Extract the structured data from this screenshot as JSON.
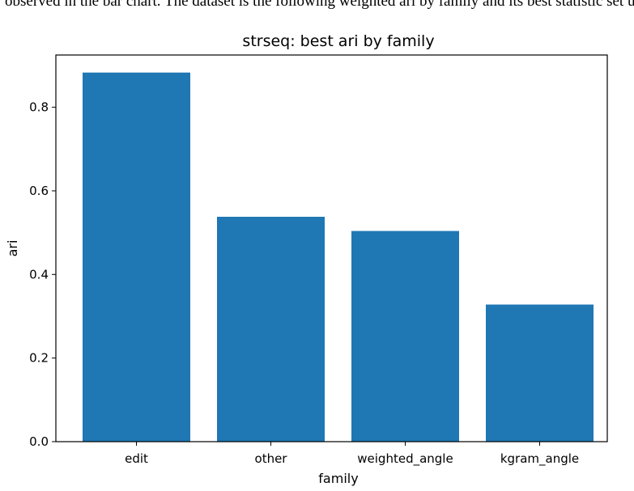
{
  "caption_fragment": "observed in the bar chart. The dataset is the following weighted ari by family and its best statistic set up it.",
  "chart_data": {
    "type": "bar",
    "title": "strseq: best ari by family",
    "xlabel": "family",
    "ylabel": "ari",
    "categories": [
      "edit",
      "other",
      "weighted_angle",
      "kgram_angle"
    ],
    "values": [
      0.883,
      0.538,
      0.504,
      0.328
    ],
    "ylim": [
      0,
      0.925
    ],
    "yticks": [
      0.0,
      0.2,
      0.4,
      0.6,
      0.8
    ],
    "ytick_labels": [
      "0.0",
      "0.2",
      "0.4",
      "0.6",
      "0.8"
    ],
    "bar_color": "#1f77b4",
    "grid": false,
    "legend": "none"
  }
}
